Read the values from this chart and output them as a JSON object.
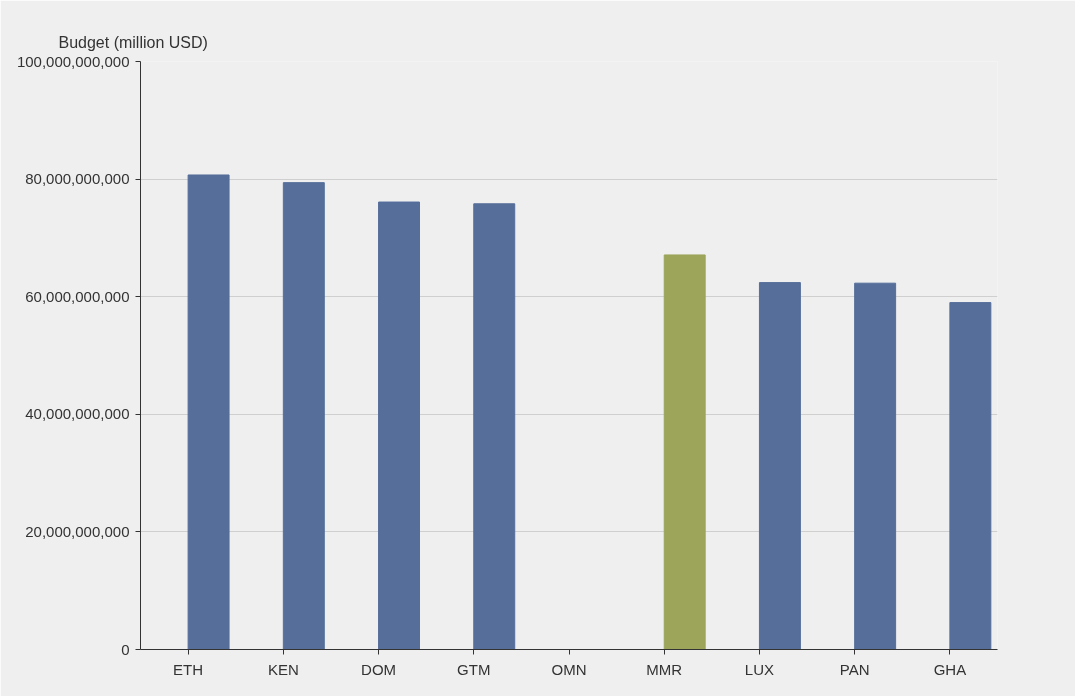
{
  "chart_data": {
    "type": "bar",
    "ylabel": "Budget (million USD)",
    "categories": [
      "ETH",
      "KEN",
      "DOM",
      "GTM",
      "OMN",
      "MMR",
      "LUX",
      "PAN",
      "GHA"
    ],
    "values": [
      80700000000,
      79400000000,
      76100000000,
      75800000000,
      null,
      67100000000,
      62400000000,
      62300000000,
      59000000000
    ],
    "colors": [
      "#556e9a",
      "#556e9a",
      "#556e9a",
      "#556e9a",
      "#556e9a",
      "#9ca55a",
      "#556e9a",
      "#556e9a",
      "#556e9a"
    ],
    "ylim": [
      0,
      100000000000
    ],
    "yticks": [
      {
        "value": 0,
        "label": "0"
      },
      {
        "value": 20000000000,
        "label": "20,000,000,000"
      },
      {
        "value": 40000000000,
        "label": "40,000,000,000"
      },
      {
        "value": 60000000000,
        "label": "60,000,000,000"
      },
      {
        "value": 80000000000,
        "label": "80,000,000,000"
      },
      {
        "value": 100000000000,
        "label": "100,000,000,000"
      }
    ],
    "grid": "y"
  }
}
